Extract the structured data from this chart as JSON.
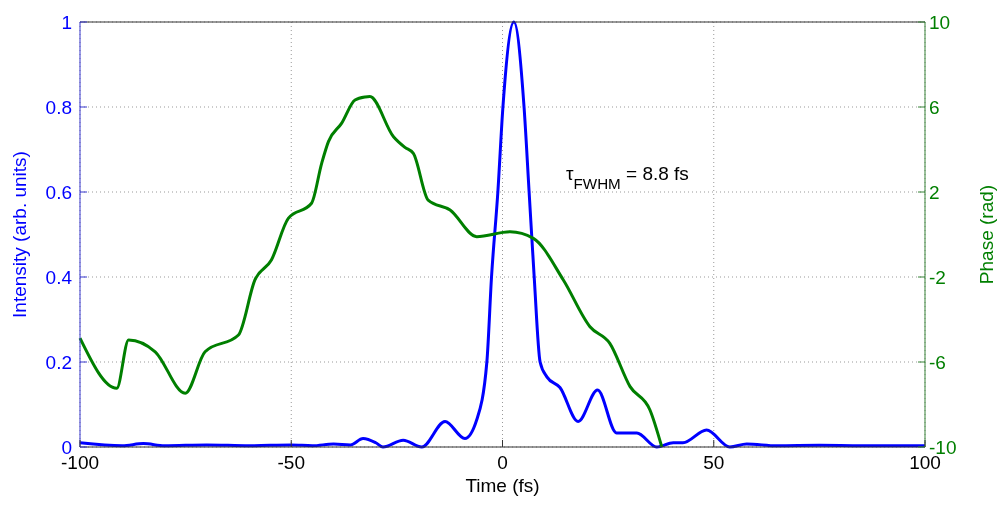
{
  "chart_data": {
    "type": "line",
    "xlabel": "Time (fs)",
    "ylabel": "Intensity (arb. units)",
    "y2label": "Phase (rad)",
    "xlim": [
      -100,
      100
    ],
    "xticks": [
      -100,
      -50,
      0,
      50,
      100
    ],
    "ylim": [
      0,
      1
    ],
    "yticks": [
      0,
      0.2,
      0.4,
      0.6,
      0.8,
      1
    ],
    "y2lim": [
      -10,
      10
    ],
    "y2ticks": [
      -10,
      -6,
      -2,
      2,
      6,
      10
    ],
    "grid": true,
    "line_style": "solid",
    "marker": "none",
    "annotations": [
      "τ$_{FWHM}$ = 8.8 fs"
    ],
    "series": [
      {
        "color": "#0000ff",
        "x": [
          -100,
          -90,
          -85,
          -80,
          -70,
          -60,
          -50,
          -45,
          -40,
          -36,
          -33,
          -30,
          -28.3,
          -23.5,
          -19.1,
          -13.6,
          -8.9,
          -6.1,
          -3.7,
          -2.6,
          -1.1,
          0.1,
          2.7,
          5.1,
          6.3,
          7.5,
          8.9,
          10.5,
          13.6,
          17.9,
          22.5,
          27,
          31.8,
          36.5,
          40.4,
          42.7,
          48.3,
          53.8,
          57.8,
          65,
          75,
          85,
          100
        ],
        "values": [
          0.01,
          0.003,
          0.008,
          0.003,
          0.005,
          0.003,
          0.005,
          0.003,
          0.007,
          0.005,
          0.02,
          0.01,
          0,
          0.016,
          0,
          0.06,
          0.02,
          0.064,
          0.2,
          0.4,
          0.6,
          0.8,
          1,
          0.8,
          0.6,
          0.4,
          0.2,
          0.165,
          0.14,
          0.06,
          0.134,
          0.033,
          0.033,
          0,
          0.01,
          0.01,
          0.04,
          0,
          0.007,
          0.003,
          0.004,
          0.003,
          0.003
        ]
      },
      {
        "color": "#007f00",
        "axis": "y2",
        "x": [
          -100,
          -91.3,
          -88.5,
          -82.2,
          -75.1,
          -70.4,
          -62.5,
          -58.6,
          -54.7,
          -50.7,
          -45.2,
          -42.8,
          -41.2,
          -38.1,
          -34.9,
          -32.5,
          -31.4,
          -25.8,
          -23.1,
          -21.1,
          -17.6,
          -12.4,
          -6.1,
          1.8,
          7.3,
          14.4,
          20.7,
          25.4,
          30.2,
          34.9,
          37.7
        ],
        "values": [
          -4.88,
          -7.24,
          -4.96,
          -5.52,
          -7.47,
          -5.52,
          -4.73,
          -2.14,
          -1.2,
          0.76,
          1.47,
          3.35,
          4.37,
          5.23,
          6.33,
          6.47,
          6.49,
          4.6,
          4.1,
          3.82,
          1.62,
          1.15,
          -0.1,
          0.13,
          -0.18,
          -2.14,
          -4.34,
          -5.12,
          -7.16,
          -8.26,
          -10
        ]
      }
    ]
  }
}
